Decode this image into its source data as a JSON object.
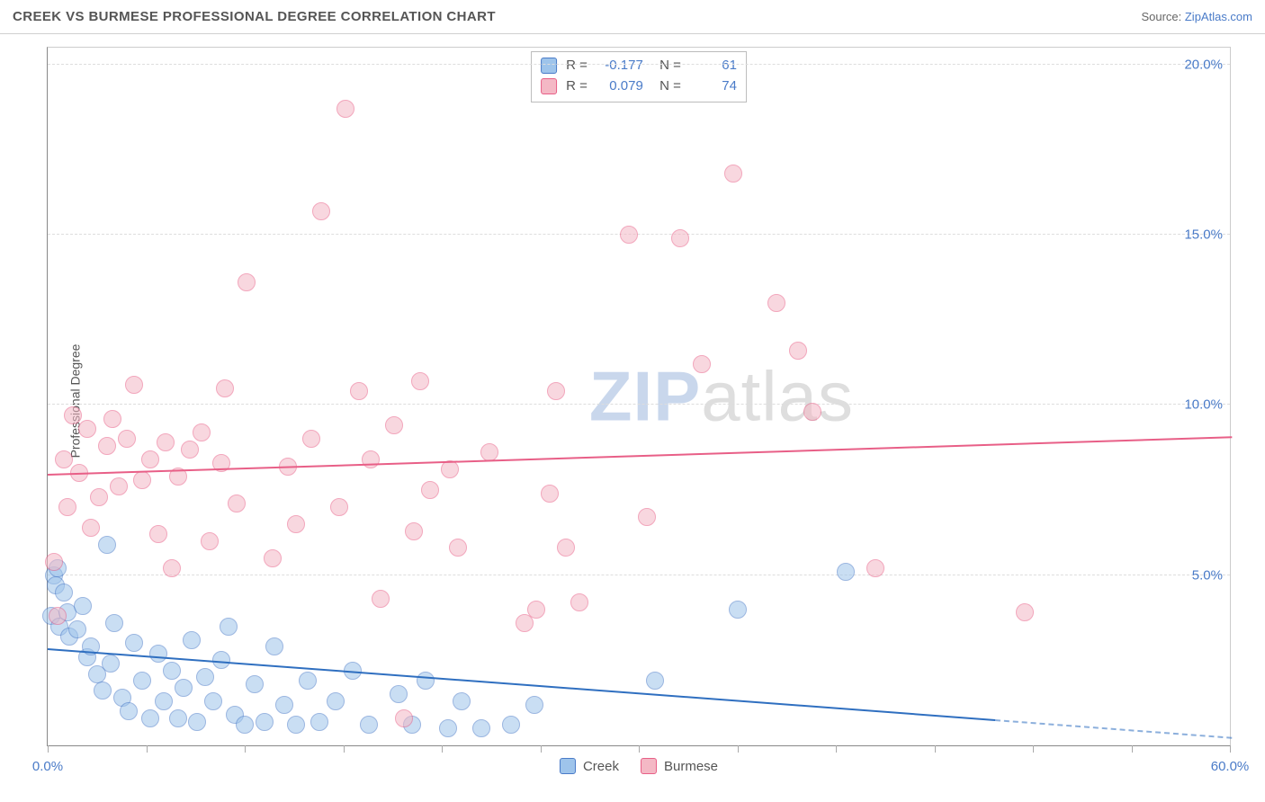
{
  "header": {
    "title": "CREEK VS BURMESE PROFESSIONAL DEGREE CORRELATION CHART",
    "source_prefix": "Source: ",
    "source_link": "ZipAtlas.com"
  },
  "y_axis": {
    "title": "Professional Degree"
  },
  "watermark": {
    "bold": "ZIP",
    "rest": "atlas"
  },
  "chart": {
    "type": "scatter",
    "xlim": [
      0,
      60
    ],
    "ylim": [
      0,
      20.5
    ],
    "xtick_positions": [
      0,
      5,
      10,
      15,
      20,
      25,
      30,
      35,
      40,
      45,
      50,
      55,
      60
    ],
    "xtick_labels": {
      "0": "0.0%",
      "60": "60.0%"
    },
    "ytick_positions": [
      5,
      10,
      15,
      20
    ],
    "ytick_labels": {
      "5": "5.0%",
      "10": "10.0%",
      "15": "15.0%",
      "20": "20.0%"
    },
    "background_color": "#ffffff",
    "grid_color": "#dddddd",
    "marker_radius": 10,
    "marker_opacity": 0.55,
    "series": [
      {
        "name": "Creek",
        "color_fill": "#9ec4eb",
        "color_stroke": "#4a7bc8",
        "trend_color": "#2f6fc0",
        "r": "-0.177",
        "n": "61",
        "trend": {
          "x0": 0,
          "y0": 2.9,
          "x1": 60,
          "y1": 0.3,
          "solid_until": 48
        },
        "points": [
          [
            0.2,
            3.8
          ],
          [
            0.3,
            5.0
          ],
          [
            0.4,
            4.7
          ],
          [
            0.5,
            5.2
          ],
          [
            0.6,
            3.5
          ],
          [
            0.8,
            4.5
          ],
          [
            1.0,
            3.9
          ],
          [
            1.1,
            3.2
          ],
          [
            1.5,
            3.4
          ],
          [
            1.8,
            4.1
          ],
          [
            2.0,
            2.6
          ],
          [
            2.2,
            2.9
          ],
          [
            2.5,
            2.1
          ],
          [
            2.8,
            1.6
          ],
          [
            3.0,
            5.9
          ],
          [
            3.2,
            2.4
          ],
          [
            3.4,
            3.6
          ],
          [
            3.8,
            1.4
          ],
          [
            4.1,
            1.0
          ],
          [
            4.4,
            3.0
          ],
          [
            4.8,
            1.9
          ],
          [
            5.2,
            0.8
          ],
          [
            5.6,
            2.7
          ],
          [
            5.9,
            1.3
          ],
          [
            6.3,
            2.2
          ],
          [
            6.6,
            0.8
          ],
          [
            6.9,
            1.7
          ],
          [
            7.3,
            3.1
          ],
          [
            7.6,
            0.7
          ],
          [
            8.0,
            2.0
          ],
          [
            8.4,
            1.3
          ],
          [
            8.8,
            2.5
          ],
          [
            9.2,
            3.5
          ],
          [
            9.5,
            0.9
          ],
          [
            10.0,
            0.6
          ],
          [
            10.5,
            1.8
          ],
          [
            11.0,
            0.7
          ],
          [
            11.5,
            2.9
          ],
          [
            12.0,
            1.2
          ],
          [
            12.6,
            0.6
          ],
          [
            13.2,
            1.9
          ],
          [
            13.8,
            0.7
          ],
          [
            14.6,
            1.3
          ],
          [
            15.5,
            2.2
          ],
          [
            16.3,
            0.6
          ],
          [
            17.8,
            1.5
          ],
          [
            18.5,
            0.6
          ],
          [
            19.2,
            1.9
          ],
          [
            20.3,
            0.5
          ],
          [
            21.0,
            1.3
          ],
          [
            22.0,
            0.5
          ],
          [
            23.5,
            0.6
          ],
          [
            24.7,
            1.2
          ],
          [
            30.8,
            1.9
          ],
          [
            35.0,
            4.0
          ],
          [
            40.5,
            5.1
          ]
        ]
      },
      {
        "name": "Burmese",
        "color_fill": "#f4b8c5",
        "color_stroke": "#e85f87",
        "trend_color": "#e85f87",
        "r": "0.079",
        "n": "74",
        "trend": {
          "x0": 0,
          "y0": 8.0,
          "x1": 60,
          "y1": 9.1,
          "solid_until": 60
        },
        "points": [
          [
            0.3,
            5.4
          ],
          [
            0.5,
            3.8
          ],
          [
            0.8,
            8.4
          ],
          [
            1.0,
            7.0
          ],
          [
            1.3,
            9.7
          ],
          [
            1.6,
            8.0
          ],
          [
            2.0,
            9.3
          ],
          [
            2.2,
            6.4
          ],
          [
            2.6,
            7.3
          ],
          [
            3.0,
            8.8
          ],
          [
            3.3,
            9.6
          ],
          [
            3.6,
            7.6
          ],
          [
            4.0,
            9.0
          ],
          [
            4.4,
            10.6
          ],
          [
            4.8,
            7.8
          ],
          [
            5.2,
            8.4
          ],
          [
            5.6,
            6.2
          ],
          [
            6.0,
            8.9
          ],
          [
            6.3,
            5.2
          ],
          [
            6.6,
            7.9
          ],
          [
            7.2,
            8.7
          ],
          [
            7.8,
            9.2
          ],
          [
            8.2,
            6.0
          ],
          [
            8.8,
            8.3
          ],
          [
            9.0,
            10.5
          ],
          [
            9.6,
            7.1
          ],
          [
            10.1,
            13.6
          ],
          [
            11.4,
            5.5
          ],
          [
            12.2,
            8.2
          ],
          [
            12.6,
            6.5
          ],
          [
            13.4,
            9.0
          ],
          [
            13.9,
            15.7
          ],
          [
            14.8,
            7.0
          ],
          [
            15.1,
            18.7
          ],
          [
            15.8,
            10.4
          ],
          [
            16.4,
            8.4
          ],
          [
            16.9,
            4.3
          ],
          [
            17.6,
            9.4
          ],
          [
            18.1,
            0.8
          ],
          [
            18.6,
            6.3
          ],
          [
            18.9,
            10.7
          ],
          [
            19.4,
            7.5
          ],
          [
            20.4,
            8.1
          ],
          [
            20.8,
            5.8
          ],
          [
            22.4,
            8.6
          ],
          [
            24.2,
            3.6
          ],
          [
            24.8,
            4.0
          ],
          [
            25.5,
            7.4
          ],
          [
            25.8,
            10.4
          ],
          [
            26.3,
            5.8
          ],
          [
            27.0,
            4.2
          ],
          [
            29.5,
            15.0
          ],
          [
            30.4,
            6.7
          ],
          [
            32.1,
            14.9
          ],
          [
            33.2,
            11.2
          ],
          [
            34.8,
            16.8
          ],
          [
            37.0,
            13.0
          ],
          [
            38.1,
            11.6
          ],
          [
            38.8,
            9.8
          ],
          [
            42.0,
            5.2
          ],
          [
            49.6,
            3.9
          ]
        ]
      }
    ]
  },
  "legend": {
    "items": [
      {
        "label": "Creek",
        "fill": "#9ec4eb",
        "stroke": "#4a7bc8"
      },
      {
        "label": "Burmese",
        "fill": "#f4b8c5",
        "stroke": "#e85f87"
      }
    ]
  }
}
